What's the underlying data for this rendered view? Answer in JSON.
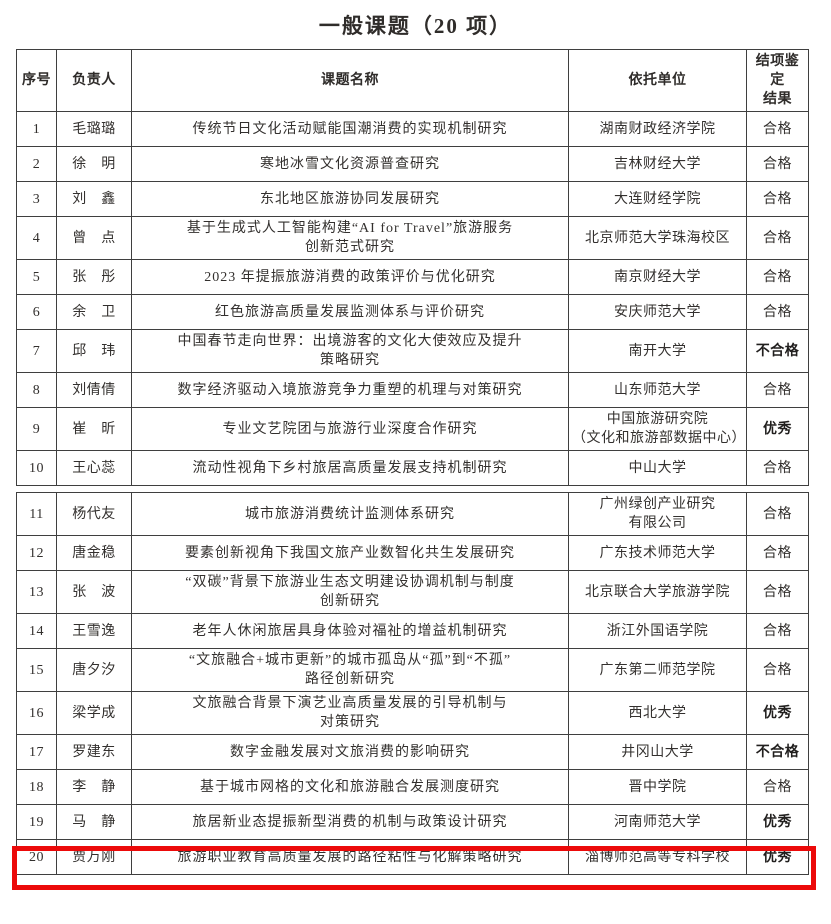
{
  "page": {
    "title": "一般课题（20 项）"
  },
  "colors": {
    "highlight_red": "#ec0a0a",
    "text": "#33302e",
    "border": "#3f3f3f",
    "background": "#ffffff"
  },
  "table": {
    "headers": [
      "序号",
      "负责人",
      "课题名称",
      "依托单位",
      "结项鉴定\n结果"
    ],
    "section_break_after": 10,
    "rows": [
      {
        "no": "1",
        "leader": "毛璐璐",
        "topic": "传统节日文化活动赋能国潮消费的实现机制研究",
        "institution": "湖南财政经济学院",
        "result": "合格",
        "emphasis": false,
        "highlighted": false
      },
      {
        "no": "2",
        "leader": "徐　明",
        "topic": "寒地冰雪文化资源普查研究",
        "institution": "吉林财经大学",
        "result": "合格",
        "emphasis": false,
        "highlighted": false
      },
      {
        "no": "3",
        "leader": "刘　鑫",
        "topic": "东北地区旅游协同发展研究",
        "institution": "大连财经学院",
        "result": "合格",
        "emphasis": false,
        "highlighted": false
      },
      {
        "no": "4",
        "leader": "曾　点",
        "topic": "基于生成式人工智能构建“AI for Travel”旅游服务\n创新范式研究",
        "institution": "北京师范大学珠海校区",
        "result": "合格",
        "emphasis": false,
        "highlighted": false
      },
      {
        "no": "5",
        "leader": "张　彤",
        "topic": "2023 年提振旅游消费的政策评价与优化研究",
        "institution": "南京财经大学",
        "result": "合格",
        "emphasis": false,
        "highlighted": false
      },
      {
        "no": "6",
        "leader": "余　卫",
        "topic": "红色旅游高质量发展监测体系与评价研究",
        "institution": "安庆师范大学",
        "result": "合格",
        "emphasis": false,
        "highlighted": false
      },
      {
        "no": "7",
        "leader": "邱　玮",
        "topic": "中国春节走向世界：出境游客的文化大使效应及提升\n策略研究",
        "institution": "南开大学",
        "result": "不合格",
        "emphasis": true,
        "highlighted": false
      },
      {
        "no": "8",
        "leader": "刘倩倩",
        "topic": "数字经济驱动入境旅游竞争力重塑的机理与对策研究",
        "institution": "山东师范大学",
        "result": "合格",
        "emphasis": false,
        "highlighted": false
      },
      {
        "no": "9",
        "leader": "崔　昕",
        "topic": "专业文艺院团与旅游行业深度合作研究",
        "institution": "中国旅游研究院\n（文化和旅游部数据中心）",
        "result": "优秀",
        "emphasis": true,
        "highlighted": false
      },
      {
        "no": "10",
        "leader": "王心蕊",
        "topic": "流动性视角下乡村旅居高质量发展支持机制研究",
        "institution": "中山大学",
        "result": "合格",
        "emphasis": false,
        "highlighted": false
      },
      {
        "no": "11",
        "leader": "杨代友",
        "topic": "城市旅游消费统计监测体系研究",
        "institution": "广州绿创产业研究\n有限公司",
        "result": "合格",
        "emphasis": false,
        "highlighted": false
      },
      {
        "no": "12",
        "leader": "唐金稳",
        "topic": "要素创新视角下我国文旅产业数智化共生发展研究",
        "institution": "广东技术师范大学",
        "result": "合格",
        "emphasis": false,
        "highlighted": false
      },
      {
        "no": "13",
        "leader": "张　波",
        "topic": "“双碳”背景下旅游业生态文明建设协调机制与制度\n创新研究",
        "institution": "北京联合大学旅游学院",
        "result": "合格",
        "emphasis": false,
        "highlighted": false
      },
      {
        "no": "14",
        "leader": "王雪逸",
        "topic": "老年人休闲旅居具身体验对福祉的增益机制研究",
        "institution": "浙江外国语学院",
        "result": "合格",
        "emphasis": false,
        "highlighted": false
      },
      {
        "no": "15",
        "leader": "唐夕汐",
        "topic": "“文旅融合+城市更新”的城市孤岛从“孤”到“不孤”\n路径创新研究",
        "institution": "广东第二师范学院",
        "result": "合格",
        "emphasis": false,
        "highlighted": false
      },
      {
        "no": "16",
        "leader": "梁学成",
        "topic": "文旅融合背景下演艺业高质量发展的引导机制与\n对策研究",
        "institution": "西北大学",
        "result": "优秀",
        "emphasis": true,
        "highlighted": false
      },
      {
        "no": "17",
        "leader": "罗建东",
        "topic": "数字金融发展对文旅消费的影响研究",
        "institution": "井冈山大学",
        "result": "不合格",
        "emphasis": true,
        "highlighted": false
      },
      {
        "no": "18",
        "leader": "李　静",
        "topic": "基于城市网格的文化和旅游融合发展测度研究",
        "institution": "晋中学院",
        "result": "合格",
        "emphasis": false,
        "highlighted": false
      },
      {
        "no": "19",
        "leader": "马　静",
        "topic": "旅居新业态提振新型消费的机制与政策设计研究",
        "institution": "河南师范大学",
        "result": "优秀",
        "emphasis": true,
        "highlighted": false
      },
      {
        "no": "20",
        "leader": "贾万刚",
        "topic": "旅游职业教育高质量发展的路径粘性与化解策略研究",
        "institution": "淄博师范高等专科学校",
        "result": "优秀",
        "emphasis": true,
        "highlighted": true
      }
    ]
  }
}
